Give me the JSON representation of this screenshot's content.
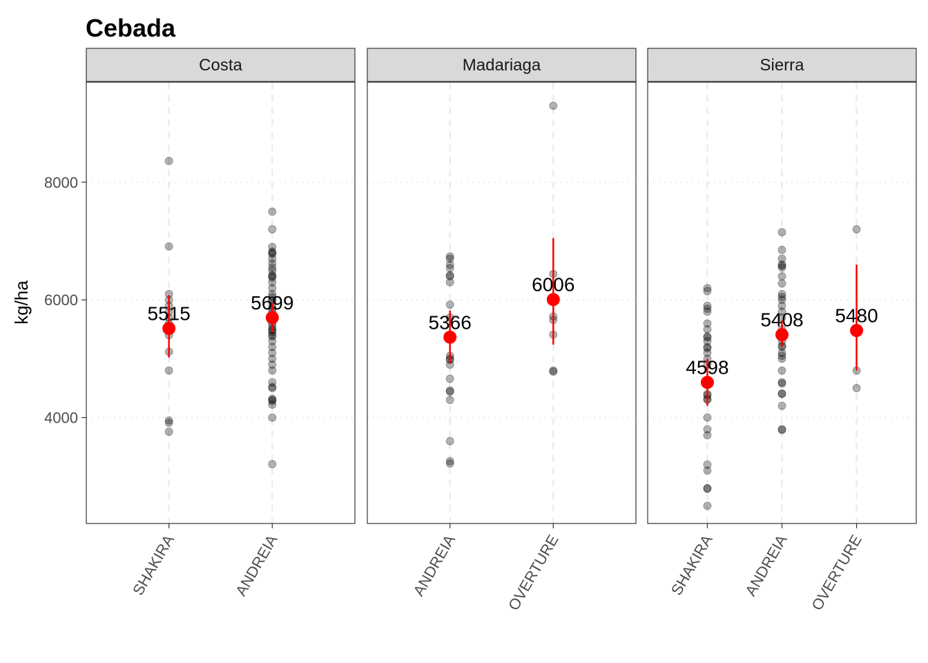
{
  "chart_data": {
    "type": "scatter",
    "title": "Cebada",
    "xlabel": "",
    "ylabel": "kg/ha",
    "ylim": [
      2200,
      9700
    ],
    "yticks": [
      4000,
      6000,
      8000
    ],
    "grid": true,
    "facets": [
      {
        "name": "Costa",
        "categories": [
          "SHAKIRA",
          "ANDREIA"
        ],
        "groups": [
          {
            "category": "SHAKIRA",
            "mean": 5515,
            "lower": 5020,
            "upper": 6080,
            "label": "5515",
            "points": [
              8360,
              6910,
              6100,
              6000,
              5900,
              5800,
              5700,
              5600,
              5500,
              5400,
              5120,
              4800,
              3950,
              3910,
              3760
            ]
          },
          {
            "category": "ANDREIA",
            "mean": 5699,
            "lower": 5450,
            "upper": 5950,
            "label": "5699",
            "points": [
              7500,
              7200,
              6900,
              6820,
              6800,
              6780,
              6700,
              6620,
              6550,
              6500,
              6420,
              6400,
              6380,
              6300,
              6200,
              6100,
              6050,
              6000,
              5980,
              5900,
              5850,
              5800,
              5700,
              5650,
              5600,
              5550,
              5500,
              5480,
              5450,
              5400,
              5380,
              5300,
              5200,
              5100,
              5000,
              4900,
              4800,
              4600,
              4520,
              4500,
              4320,
              4300,
              4280,
              4220,
              4000,
              3210
            ]
          }
        ]
      },
      {
        "name": "Madariaga",
        "categories": [
          "ANDREIA",
          "OVERTURE"
        ],
        "groups": [
          {
            "category": "ANDREIA",
            "mean": 5366,
            "lower": 4920,
            "upper": 5820,
            "label": "5366",
            "points": [
              6740,
              6700,
              6600,
              6540,
              6420,
              6400,
              6300,
              5920,
              5700,
              5380,
              5050,
              5000,
              4980,
              4900,
              4660,
              4460,
              4440,
              4300,
              3600,
              3260,
              3220
            ]
          },
          {
            "category": "OVERTURE",
            "mean": 6006,
            "lower": 5240,
            "upper": 7050,
            "label": "6006",
            "points": [
              9300,
              6440,
              5720,
              5660,
              5410,
              4800,
              4780
            ]
          }
        ]
      },
      {
        "name": "Sierra",
        "categories": [
          "SHAKIRA",
          "ANDREIA",
          "OVERTURE"
        ],
        "groups": [
          {
            "category": "SHAKIRA",
            "mean": 4598,
            "lower": 4200,
            "upper": 5000,
            "label": "4598",
            "points": [
              6200,
              6150,
              5900,
              5850,
              5800,
              5600,
              5500,
              5380,
              5360,
              5300,
              5200,
              5180,
              5100,
              5000,
              4900,
              4600,
              4400,
              4380,
              4320,
              4300,
              4000,
              3800,
              3700,
              3200,
              3100,
              2800,
              2790,
              2500
            ]
          },
          {
            "category": "ANDREIA",
            "mean": 5408,
            "lower": 5200,
            "upper": 5650,
            "label": "5408",
            "points": [
              7150,
              6850,
              6700,
              6600,
              6580,
              6550,
              6400,
              6280,
              6100,
              6050,
              6000,
              5900,
              5800,
              5700,
              5500,
              5400,
              5300,
              5220,
              5200,
              5100,
              5050,
              5000,
              4800,
              4600,
              4580,
              4400,
              4410,
              4200,
              3800,
              3790
            ]
          },
          {
            "category": "OVERTURE",
            "mean": 5480,
            "lower": 4800,
            "upper": 6600,
            "label": "5480",
            "points": [
              7200,
              4800,
              4500
            ]
          }
        ]
      }
    ]
  },
  "colors": {
    "point": "#000000",
    "mean": "#ff0000",
    "strip_fill": "#d9d9d9",
    "panel_border": "#333333",
    "grid": "#ebebeb"
  }
}
